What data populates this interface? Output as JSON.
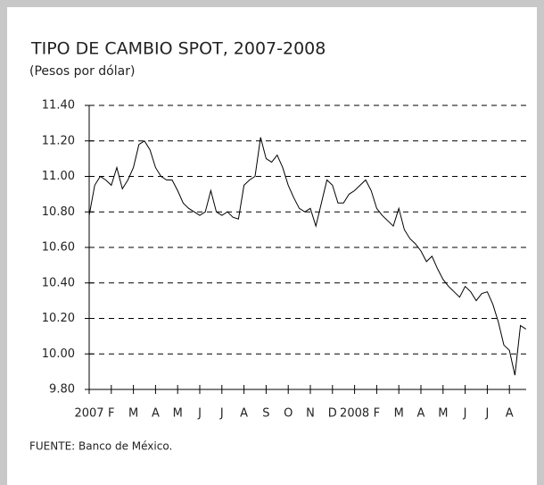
{
  "chart_data": {
    "type": "line",
    "title": "TIPO DE CAMBIO SPOT, 2007-2008",
    "subtitle": "(Pesos por dólar)",
    "source": "FUENTE: Banco de México.",
    "categories": [
      "2007",
      null,
      null,
      null,
      "F",
      null,
      null,
      null,
      "M",
      null,
      null,
      null,
      "A",
      null,
      null,
      null,
      "M",
      null,
      null,
      null,
      "J",
      null,
      null,
      null,
      "J",
      null,
      null,
      null,
      "A",
      null,
      null,
      null,
      "S",
      null,
      null,
      null,
      "O",
      null,
      null,
      null,
      "N",
      null,
      null,
      null,
      "D",
      null,
      null,
      null,
      "2008",
      null,
      null,
      null,
      "F",
      null,
      null,
      null,
      "M",
      null,
      null,
      null,
      "A",
      null,
      null,
      null,
      "M",
      null,
      null,
      null,
      "J",
      null,
      null,
      null,
      "J",
      null,
      null,
      null,
      "A",
      null,
      null,
      null
    ],
    "series": [
      {
        "name": "Tipo de cambio",
        "color": "#000000",
        "values": [
          10.78,
          10.95,
          11.0,
          10.98,
          10.95,
          11.05,
          10.93,
          10.98,
          11.05,
          11.18,
          11.2,
          11.15,
          11.05,
          11.0,
          10.98,
          10.98,
          10.92,
          10.85,
          10.82,
          10.8,
          10.78,
          10.8,
          10.92,
          10.8,
          10.78,
          10.8,
          10.77,
          10.76,
          10.95,
          10.98,
          11.0,
          11.22,
          11.1,
          11.08,
          11.12,
          11.05,
          10.95,
          10.88,
          10.82,
          10.8,
          10.82,
          10.72,
          10.85,
          10.98,
          10.95,
          10.85,
          10.85,
          10.9,
          10.92,
          10.95,
          10.98,
          10.92,
          10.82,
          10.78,
          10.75,
          10.72,
          10.82,
          10.7,
          10.65,
          10.62,
          10.58,
          10.52,
          10.55,
          10.48,
          10.42,
          10.38,
          10.35,
          10.32,
          10.38,
          10.35,
          10.3,
          10.34,
          10.35,
          10.28,
          10.18,
          10.05,
          10.02,
          9.88,
          10.16,
          10.14
        ]
      }
    ],
    "ylim": [
      9.8,
      11.4
    ],
    "yticks": [
      {
        "value": 9.8,
        "label": "9.80"
      },
      {
        "value": 10,
        "label": "10.00"
      },
      {
        "value": 10.2,
        "label": "10.20"
      },
      {
        "value": 10.4,
        "label": "10.40"
      },
      {
        "value": 10.6,
        "label": "10.60"
      },
      {
        "value": 10.8,
        "label": "10.80"
      },
      {
        "value": 11,
        "label": "11.00"
      },
      {
        "value": 11.2,
        "label": "11.20"
      },
      {
        "value": 11.4,
        "label": "11.40"
      }
    ],
    "grid": true
  }
}
